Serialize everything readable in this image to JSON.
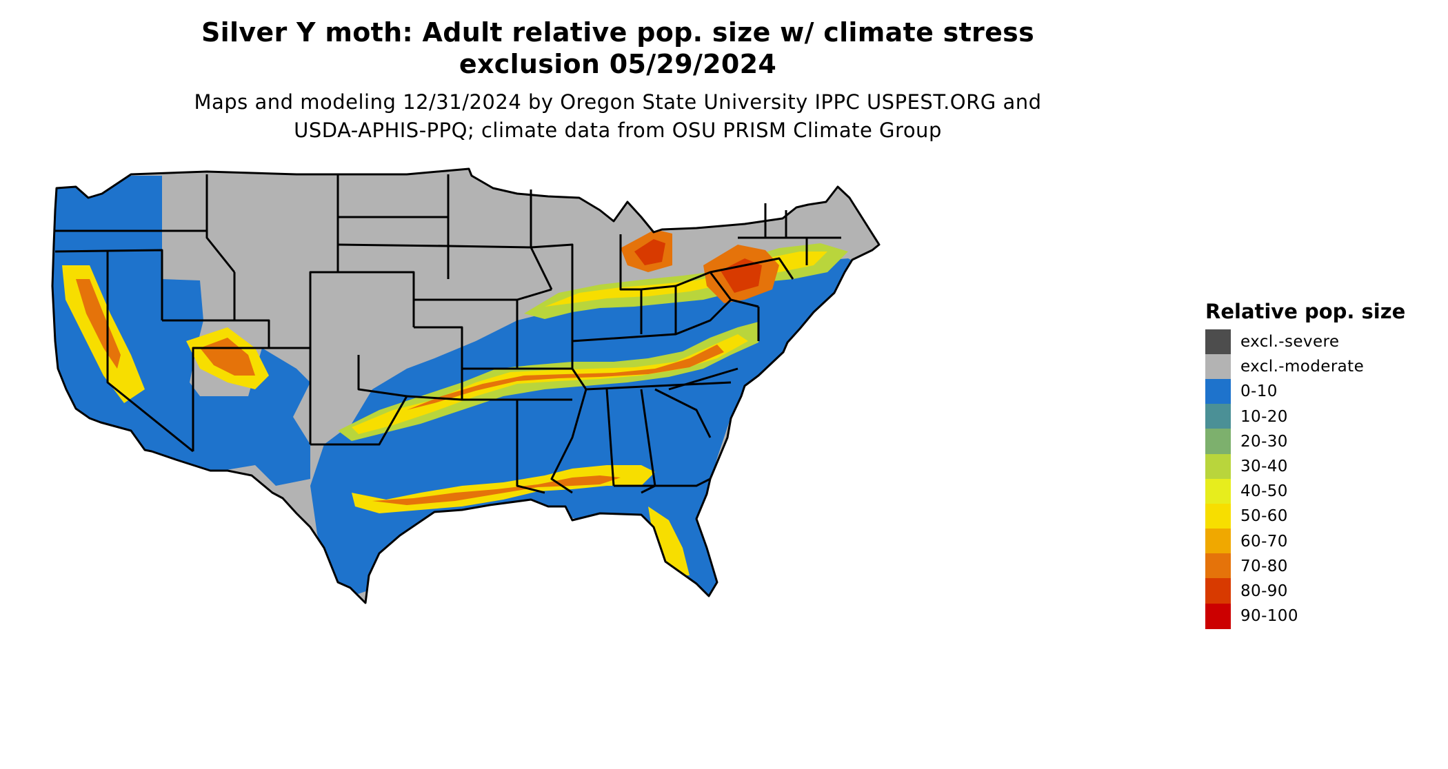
{
  "title_line1": "Silver Y moth: Adult relative pop. size w/ climate stress",
  "title_line2": "exclusion 05/29/2024",
  "subtitle_line1": "Maps and modeling 12/31/2024 by Oregon State University IPPC USPEST.ORG and",
  "subtitle_line2": "USDA-APHIS-PPQ; climate data from OSU PRISM Climate Group",
  "legend": {
    "title": "Relative pop. size",
    "items": [
      {
        "label": "excl.-severe",
        "color": "#4d4d4d"
      },
      {
        "label": "excl.-moderate",
        "color": "#b3b3b3"
      },
      {
        "label": "0-10",
        "color": "#1e73cc"
      },
      {
        "label": "10-20",
        "color": "#4b9096"
      },
      {
        "label": "20-30",
        "color": "#7db06d"
      },
      {
        "label": "30-40",
        "color": "#b9d53c"
      },
      {
        "label": "40-50",
        "color": "#e7ed1d"
      },
      {
        "label": "50-60",
        "color": "#f7de00"
      },
      {
        "label": "60-70",
        "color": "#f0a800"
      },
      {
        "label": "70-80",
        "color": "#e5730a"
      },
      {
        "label": "80-90",
        "color": "#d83a00"
      },
      {
        "label": "90-100",
        "color": "#cc0000"
      }
    ]
  }
}
